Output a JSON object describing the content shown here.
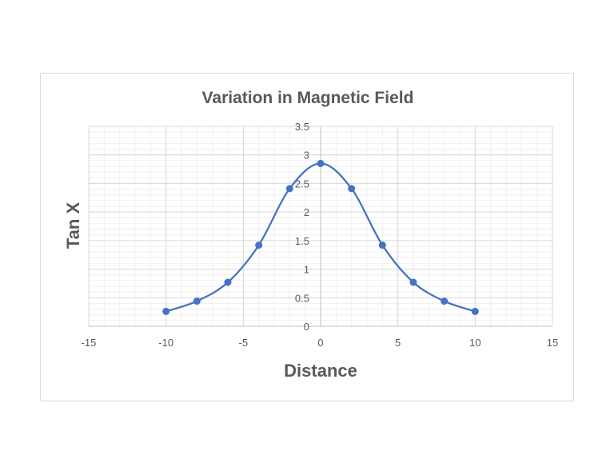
{
  "chart_data": {
    "type": "scatter",
    "title": "Variation in Magnetic Field",
    "xlabel": "Distance",
    "ylabel": "Tan X",
    "xlim": [
      -15,
      15
    ],
    "ylim": [
      0,
      3.5
    ],
    "xticks": [
      -15,
      -10,
      -5,
      0,
      5,
      10,
      15
    ],
    "yticks": [
      0,
      0.5,
      1,
      1.5,
      2,
      2.5,
      3,
      3.5
    ],
    "grid": true,
    "smooth_line": true,
    "series": [
      {
        "x": [
          -10,
          -8,
          -6,
          -4,
          -2,
          0,
          2,
          4,
          6,
          8,
          10
        ],
        "y": [
          0.26,
          0.44,
          0.77,
          1.42,
          2.41,
          2.85,
          2.41,
          1.42,
          0.77,
          0.44,
          0.26
        ],
        "color": "#4472c4"
      }
    ]
  },
  "colors": {
    "series": "#4472c4",
    "major_grid": "#d9d9d9",
    "minor_grid": "#f0f0f0",
    "text": "#595959"
  }
}
